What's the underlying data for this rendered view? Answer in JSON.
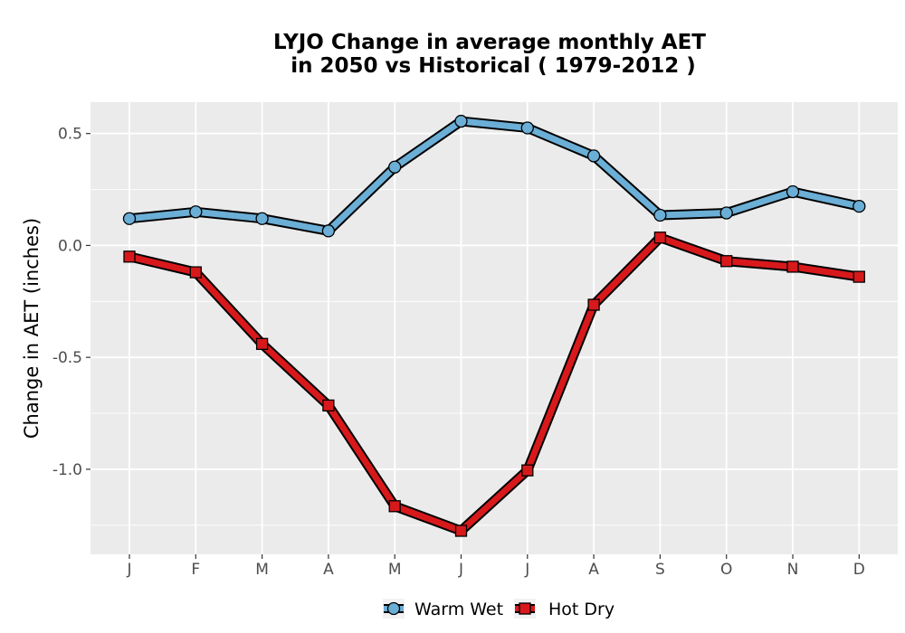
{
  "chart_data": {
    "type": "line",
    "title": [
      "LYJO  Change in average monthly AET",
      "in 2050 vs Historical ( 1979-2012 )"
    ],
    "xlabel": "",
    "ylabel": "Change in AET (inches)",
    "categories": [
      "J",
      "F",
      "M",
      "A",
      "M",
      "J",
      "J",
      "A",
      "S",
      "O",
      "N",
      "D"
    ],
    "ylim": [
      -1.38,
      0.64
    ],
    "yticks": [
      0.5,
      0.0,
      -0.5,
      -1.0
    ],
    "ytick_labels": [
      "0.5",
      "0.0",
      "-0.5",
      "-1.0"
    ],
    "grid": true,
    "legend_position": "bottom",
    "series": [
      {
        "name": "Warm Wet",
        "color": "#6baed6",
        "marker": "circle",
        "values": [
          0.12,
          0.15,
          0.12,
          0.065,
          0.35,
          0.555,
          0.525,
          0.4,
          0.135,
          0.145,
          0.24,
          0.175
        ]
      },
      {
        "name": "Hot Dry",
        "color": "#d7191c",
        "marker": "square",
        "values": [
          -0.05,
          -0.12,
          -0.44,
          -0.715,
          -1.165,
          -1.275,
          -1.005,
          -0.265,
          0.035,
          -0.07,
          -0.095,
          -0.14
        ]
      }
    ]
  }
}
